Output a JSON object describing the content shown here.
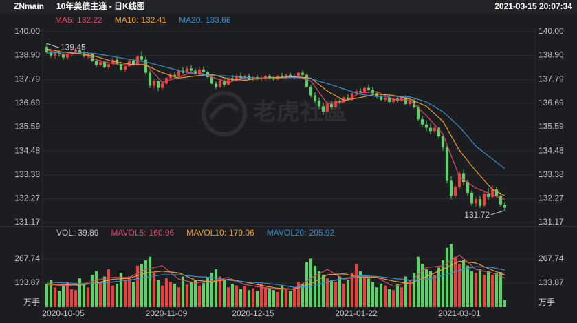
{
  "header": {
    "symbol": "ZNmain",
    "title": "10年美债主连 - 日K线图",
    "datetime": "2021-03-15 20:07:34"
  },
  "watermark": "老虎社區",
  "chart_data": [
    {
      "type": "candlestick",
      "up_color": "#e8413f",
      "down_color": "#5fd068",
      "candles": [
        [
          139.3,
          139.45,
          138.95,
          139.05
        ],
        [
          139.05,
          139.2,
          138.8,
          138.9
        ],
        [
          138.9,
          139.1,
          138.75,
          139.0
        ],
        [
          139.0,
          139.15,
          138.85,
          138.95
        ],
        [
          138.95,
          139.05,
          138.7,
          138.8
        ],
        [
          138.8,
          139.0,
          138.7,
          138.95
        ],
        [
          138.95,
          139.1,
          138.85,
          139.05
        ],
        [
          139.05,
          139.25,
          138.95,
          139.15
        ],
        [
          139.15,
          139.3,
          138.95,
          139.0
        ],
        [
          139.0,
          139.1,
          138.8,
          138.85
        ],
        [
          138.85,
          139.05,
          138.75,
          138.95
        ],
        [
          138.95,
          139.0,
          138.6,
          138.65
        ],
        [
          138.65,
          138.75,
          138.35,
          138.45
        ],
        [
          138.45,
          138.7,
          138.4,
          138.6
        ],
        [
          138.6,
          138.65,
          138.3,
          138.35
        ],
        [
          138.35,
          138.55,
          138.25,
          138.5
        ],
        [
          138.5,
          138.8,
          138.45,
          138.7
        ],
        [
          138.7,
          138.8,
          138.45,
          138.5
        ],
        [
          138.5,
          138.6,
          138.2,
          138.25
        ],
        [
          138.25,
          138.45,
          138.15,
          138.4
        ],
        [
          138.4,
          138.7,
          138.35,
          138.65
        ],
        [
          138.65,
          138.75,
          138.4,
          138.45
        ],
        [
          138.45,
          138.9,
          138.4,
          138.85
        ],
        [
          138.85,
          139.1,
          138.6,
          138.7
        ],
        [
          138.7,
          138.85,
          138.0,
          138.1
        ],
        [
          138.1,
          138.2,
          137.4,
          137.5
        ],
        [
          137.5,
          137.8,
          137.35,
          137.7
        ],
        [
          137.7,
          137.75,
          137.25,
          137.4
        ],
        [
          137.4,
          137.7,
          137.3,
          137.6
        ],
        [
          137.6,
          137.9,
          137.55,
          137.85
        ],
        [
          137.85,
          138.1,
          137.8,
          138.0
        ],
        [
          138.0,
          138.15,
          137.85,
          137.95
        ],
        [
          137.95,
          138.3,
          137.9,
          138.2
        ],
        [
          138.2,
          138.35,
          138.05,
          138.1
        ],
        [
          138.1,
          138.4,
          138.05,
          138.3
        ],
        [
          138.3,
          138.45,
          138.15,
          138.2
        ],
        [
          138.2,
          138.3,
          138.0,
          138.05
        ],
        [
          138.05,
          138.35,
          138.0,
          138.25
        ],
        [
          138.25,
          138.4,
          138.1,
          138.15
        ],
        [
          138.15,
          138.2,
          137.85,
          137.9
        ],
        [
          137.9,
          137.95,
          137.55,
          137.6
        ],
        [
          137.6,
          137.7,
          137.35,
          137.45
        ],
        [
          137.45,
          137.75,
          137.4,
          137.7
        ],
        [
          137.7,
          137.8,
          137.45,
          137.55
        ],
        [
          137.55,
          137.9,
          137.5,
          137.85
        ],
        [
          137.85,
          138.0,
          137.7,
          137.75
        ],
        [
          137.75,
          138.05,
          137.7,
          137.95
        ],
        [
          137.95,
          138.1,
          137.8,
          137.85
        ],
        [
          137.85,
          138.0,
          137.75,
          137.95
        ],
        [
          137.95,
          138.05,
          137.75,
          137.8
        ],
        [
          137.8,
          137.95,
          137.7,
          137.9
        ],
        [
          137.9,
          138.0,
          137.75,
          137.8
        ],
        [
          137.8,
          137.95,
          137.7,
          137.85
        ],
        [
          137.85,
          138.0,
          137.75,
          137.95
        ],
        [
          137.95,
          138.05,
          137.8,
          137.85
        ],
        [
          137.85,
          137.95,
          137.7,
          137.8
        ],
        [
          137.8,
          138.0,
          137.75,
          137.95
        ],
        [
          137.95,
          138.1,
          137.85,
          137.9
        ],
        [
          137.9,
          138.05,
          137.8,
          138.0
        ],
        [
          138.0,
          138.1,
          137.85,
          137.9
        ],
        [
          137.9,
          138.05,
          137.8,
          137.95
        ],
        [
          137.95,
          138.15,
          137.9,
          138.1
        ],
        [
          138.1,
          138.2,
          137.95,
          138.0
        ],
        [
          138.0,
          138.05,
          137.4,
          137.45
        ],
        [
          137.45,
          137.55,
          136.95,
          137.05
        ],
        [
          137.05,
          137.2,
          136.7,
          136.8
        ],
        [
          136.8,
          136.95,
          136.45,
          136.55
        ],
        [
          136.55,
          136.7,
          136.15,
          136.3
        ],
        [
          136.3,
          136.75,
          136.25,
          136.65
        ],
        [
          136.65,
          136.8,
          136.4,
          136.5
        ],
        [
          136.5,
          136.9,
          136.45,
          136.8
        ],
        [
          136.8,
          136.95,
          136.65,
          136.75
        ],
        [
          136.75,
          137.0,
          136.7,
          136.95
        ],
        [
          136.95,
          137.1,
          136.8,
          136.85
        ],
        [
          136.85,
          137.2,
          136.8,
          137.15
        ],
        [
          137.15,
          137.35,
          137.05,
          137.25
        ],
        [
          137.25,
          137.4,
          137.1,
          137.2
        ],
        [
          137.2,
          137.45,
          137.15,
          137.4
        ],
        [
          137.4,
          137.55,
          137.25,
          137.3
        ],
        [
          137.3,
          137.45,
          137.1,
          137.15
        ],
        [
          137.15,
          137.25,
          136.9,
          137.0
        ],
        [
          137.0,
          137.1,
          136.8,
          136.85
        ],
        [
          136.85,
          137.0,
          136.75,
          136.95
        ],
        [
          136.95,
          137.05,
          136.7,
          136.75
        ],
        [
          136.75,
          136.95,
          136.65,
          136.9
        ],
        [
          136.9,
          137.0,
          136.7,
          136.8
        ],
        [
          136.8,
          137.0,
          136.75,
          136.95
        ],
        [
          136.95,
          137.05,
          136.6,
          136.65
        ],
        [
          136.65,
          136.85,
          136.55,
          136.8
        ],
        [
          136.8,
          136.9,
          136.45,
          136.5
        ],
        [
          136.5,
          136.6,
          135.85,
          135.95
        ],
        [
          135.95,
          136.1,
          135.6,
          135.7
        ],
        [
          135.7,
          135.9,
          135.4,
          135.55
        ],
        [
          135.55,
          135.75,
          135.25,
          135.4
        ],
        [
          135.4,
          135.65,
          135.3,
          135.55
        ],
        [
          135.55,
          135.6,
          135.05,
          135.15
        ],
        [
          135.15,
          135.2,
          134.5,
          134.65
        ],
        [
          134.65,
          134.7,
          133.0,
          133.1
        ],
        [
          133.1,
          133.3,
          132.25,
          132.4
        ],
        [
          132.4,
          132.9,
          132.3,
          132.8
        ],
        [
          132.8,
          133.55,
          132.7,
          133.45
        ],
        [
          133.45,
          133.6,
          132.9,
          133.05
        ],
        [
          133.05,
          133.15,
          132.4,
          132.55
        ],
        [
          132.55,
          132.65,
          131.95,
          132.05
        ],
        [
          132.05,
          132.35,
          131.9,
          132.25
        ],
        [
          132.25,
          132.4,
          131.85,
          131.95
        ],
        [
          131.95,
          132.6,
          131.9,
          132.5
        ],
        [
          132.5,
          132.75,
          132.2,
          132.35
        ],
        [
          132.35,
          132.9,
          132.3,
          132.7
        ],
        [
          132.7,
          132.8,
          132.3,
          132.4
        ],
        [
          132.4,
          132.55,
          131.9,
          132.0
        ],
        [
          132.0,
          132.1,
          131.72,
          131.85
        ]
      ],
      "lines": {
        "x": [
          0,
          4,
          8,
          12,
          16,
          20,
          24,
          28,
          32,
          36,
          40,
          44,
          48,
          52,
          56,
          60,
          64,
          68,
          72,
          76,
          80,
          84,
          88,
          92,
          96,
          100,
          104,
          108,
          111
        ],
        "series": [
          {
            "name": "MA5:",
            "color": "#e0476a",
            "values": [
              139.15,
              138.95,
              139.0,
              138.7,
              138.52,
              138.45,
              138.5,
              137.65,
              137.9,
              138.17,
              137.9,
              137.65,
              137.88,
              137.85,
              137.86,
              137.95,
              137.72,
              136.66,
              136.76,
              137.17,
              137.22,
              136.86,
              136.83,
              136.12,
              135.26,
              133.28,
              132.76,
              132.46,
              132.22
            ]
          },
          {
            "name": "MA10:",
            "color": "#f0a030",
            "values": [
              139.2,
              139.05,
              138.98,
              138.85,
              138.62,
              138.5,
              138.45,
              138.1,
              137.85,
              137.95,
              138.02,
              137.82,
              137.75,
              137.85,
              137.88,
              137.92,
              137.85,
              137.25,
              136.82,
              136.95,
              137.12,
              137.05,
              136.88,
              136.55,
              135.85,
              134.5,
              133.55,
              132.7,
              132.41
            ]
          },
          {
            "name": "MA20:",
            "color": "#3a8fd0",
            "values": [
              139.0,
              139.05,
              139.05,
              138.98,
              138.85,
              138.72,
              138.6,
              138.4,
              138.2,
              138.05,
              137.98,
              137.95,
              137.88,
              137.85,
              137.85,
              137.88,
              137.82,
              137.6,
              137.35,
              137.1,
              137.0,
              137.02,
              136.98,
              136.75,
              136.3,
              135.6,
              134.7,
              134.1,
              133.66
            ]
          }
        ]
      },
      "xlim": [
        -0.5,
        111.5
      ],
      "ylim": [
        131.17,
        140.0
      ],
      "yticks": [
        {
          "value": 140.0,
          "label": "140.00"
        },
        {
          "value": 138.9,
          "label": "138.90"
        },
        137.79,
        136.69,
        135.59,
        134.48,
        133.38,
        132.27,
        131.17
      ],
      "grid": true
    },
    {
      "type": "volume",
      "name": "VOL:",
      "values": [
        130,
        150,
        110,
        90,
        120,
        140,
        100,
        95,
        160,
        130,
        110,
        180,
        200,
        140,
        170,
        210,
        120,
        130,
        190,
        150,
        170,
        140,
        230,
        240,
        260,
        280,
        190,
        150,
        120,
        160,
        140,
        130,
        110,
        170,
        125,
        140,
        150,
        120,
        135,
        165,
        190,
        210,
        170,
        150,
        110,
        130,
        120,
        100,
        115,
        95,
        105,
        90,
        130,
        110,
        100,
        95,
        85,
        120,
        100,
        90,
        110,
        140,
        130,
        250,
        270,
        230,
        200,
        180,
        160,
        150,
        140,
        170,
        130,
        150,
        190,
        240,
        200,
        180,
        160,
        140,
        110,
        130,
        120,
        100,
        95,
        130,
        110,
        170,
        150,
        190,
        280,
        240,
        210,
        200,
        180,
        220,
        260,
        330,
        350,
        280,
        240,
        260,
        230,
        200,
        190,
        210,
        180,
        200,
        180,
        190,
        194.9,
        39.89
      ],
      "lines": {
        "x": [
          0,
          4,
          8,
          12,
          16,
          20,
          24,
          28,
          32,
          36,
          40,
          44,
          48,
          52,
          56,
          60,
          64,
          68,
          72,
          76,
          80,
          84,
          88,
          92,
          96,
          100,
          104,
          108,
          111
        ],
        "series": [
          {
            "name": "MAVOL5:",
            "color": "#e0476a",
            "values": [
              125,
              120,
              125,
              150,
              165,
              165,
              210,
              230,
              155,
              135,
              145,
              165,
              125,
              110,
              100,
              100,
              160,
              210,
              155,
              170,
              165,
              115,
              140,
              220,
              230,
              290,
              210,
              190,
              160.96
            ]
          },
          {
            "name": "MAVOL10:",
            "color": "#f0a030",
            "values": [
              130,
              125,
              122,
              135,
              155,
              160,
              190,
              200,
              190,
              150,
              140,
              155,
              140,
              120,
              105,
              100,
              130,
              180,
              185,
              165,
              165,
              145,
              130,
              170,
              210,
              255,
              245,
              205,
              179.06
            ]
          },
          {
            "name": "MAVOL20:",
            "color": "#3a8fd0",
            "values": [
              140,
              135,
              130,
              132,
              140,
              150,
              165,
              180,
              180,
              170,
              165,
              150,
              140,
              135,
              125,
              110,
              115,
              140,
              160,
              175,
              170,
              160,
              150,
              155,
              175,
              205,
              225,
              220,
              205.92
            ]
          }
        ]
      },
      "unit": "万手",
      "xlim": [
        -0.5,
        111.5
      ],
      "ylim": [
        0,
        367
      ],
      "yticks": [
        133.87,
        267.74
      ],
      "xticks": [
        {
          "value": 4,
          "label": "2020-10-05"
        },
        {
          "value": 29,
          "label": "2020-11-09"
        },
        {
          "value": 50,
          "label": "2020-12-15"
        },
        {
          "value": 75,
          "label": "2021-01-22"
        },
        {
          "value": 100,
          "label": "2021-03-01"
        }
      ],
      "grid": true
    }
  ]
}
